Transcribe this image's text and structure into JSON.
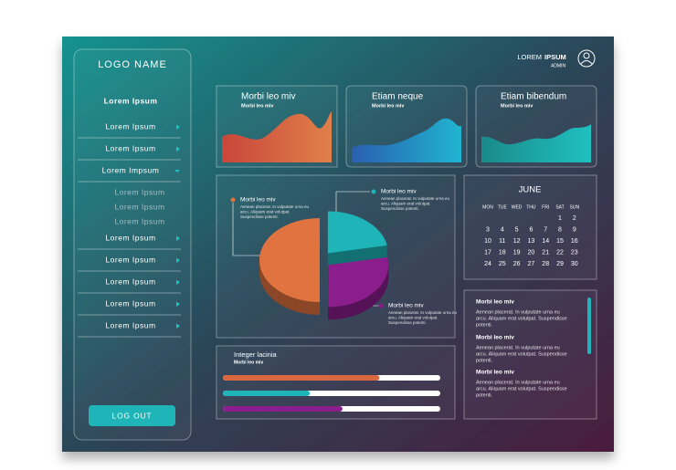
{
  "sidebar": {
    "logo": "LOGO NAME",
    "active": "Lorem Ipsum",
    "menu_top": [
      "Lorem Ipsum",
      "Lorem Ipsum",
      "Lorem Impsum"
    ],
    "submenu": [
      "Lorem Ipsum",
      "Lorem Ipsum",
      "Lorem Ipsum"
    ],
    "menu_bottom": [
      "Lorem Ipsum",
      "Lorem Ipsum",
      "Lorem Ipsum",
      "Lorem Ipsum",
      "Lorem Ipsum"
    ],
    "logout": "LOG OUT"
  },
  "header": {
    "user_regular": "LOREM",
    "user_bold": "IPSUM",
    "role": "ADMIN"
  },
  "cards": [
    {
      "title": "Morbi leo miv",
      "subtitle": "Morbi leo miv"
    },
    {
      "title": "Etiam neque",
      "subtitle": "Morbi leo miv"
    },
    {
      "title": "Etiam bibendum",
      "subtitle": "Morbi leo miv"
    }
  ],
  "pie": {
    "slices": [
      {
        "name": "Morbi leo miv",
        "color": "#1fb5b8",
        "value": 22,
        "lines": [
          "Aenean placerat. In vulputate urna eu",
          "arcu. Aliquam erat volutpat.",
          "Suspendisse potenti."
        ]
      },
      {
        "name": "Morbi leo miv",
        "color": "#8a1e8c",
        "value": 28,
        "lines": [
          "Aenean placerat. In vulputate urna eu",
          "arcu. Aliquam erat volutpat.",
          "Suspendisse potenti."
        ]
      },
      {
        "name": "Morbi leo miv",
        "color": "#e0733f",
        "value": 50,
        "lines": [
          "Aenean placerat. In vulputate urna eu",
          "arcu. Aliquam erat volutpat.",
          "Suspendisse potenti."
        ]
      }
    ]
  },
  "calendar": {
    "month": "JUNE",
    "weekdays": [
      "MON",
      "TUE",
      "WED",
      "THU",
      "FRI",
      "SAT",
      "SUN"
    ],
    "rows": [
      [
        null,
        null,
        null,
        null,
        null,
        1,
        2
      ],
      [
        3,
        4,
        5,
        6,
        7,
        8,
        9
      ],
      [
        10,
        11,
        12,
        13,
        14,
        15,
        16
      ],
      [
        17,
        18,
        19,
        20,
        21,
        22,
        23
      ],
      [
        24,
        25,
        26,
        27,
        28,
        29,
        30
      ]
    ]
  },
  "progress": {
    "title": "Integer lacinia",
    "subtitle": "Morbi leo miv",
    "bars": [
      {
        "color": "#d9673f",
        "value": 72
      },
      {
        "color": "#1fb5b8",
        "value": 40
      },
      {
        "color": "#8a1e8c",
        "value": 55
      }
    ]
  },
  "news": [
    {
      "title": "Morbi leo miv",
      "lines": [
        "Aenean placerat. In vulputate urna eu",
        "arcu. Aliquam erat volutpat. Suspendisse",
        "potenti."
      ]
    },
    {
      "title": "Morbi leo miv",
      "lines": [
        "Aenean placerat. In vulputate urna eu",
        "arcu. Aliquam erat volutpat. Suspendisse",
        "potenti."
      ]
    },
    {
      "title": "Morbi leo miv",
      "lines": [
        "Aenean placerat. In vulputate urna eu",
        "arcu. Aliquam erat volutpat. Suspendisse",
        "potenti."
      ]
    }
  ]
}
